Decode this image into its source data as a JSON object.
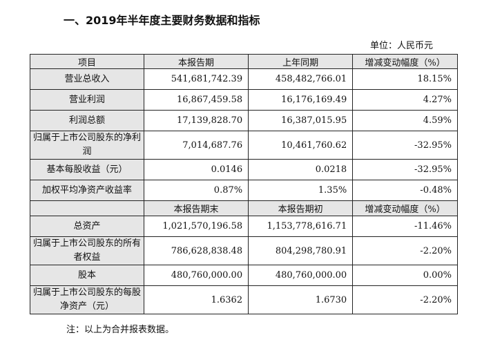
{
  "title": "一、2019年半年度主要财务数据和指标",
  "unit": "单位：人民币元",
  "header": [
    "项目",
    "本报告期",
    "上年同期",
    "增减变动幅度（%）"
  ],
  "rows1": [
    [
      "营业总收入",
      "541,681,742.39",
      "458,482,766.01",
      "18.15%"
    ],
    [
      "营业利润",
      "16,867,459.58",
      "16,176,169.49",
      "4.27%"
    ],
    [
      "利润总额",
      "17,139,828.70",
      "16,387,015.95",
      "4.59%"
    ],
    [
      "归属于上市公司股东的净利润",
      "7,014,687.76",
      "10,461,760.62",
      "-32.95%"
    ],
    [
      "基本每股收益（元）",
      "0.0146",
      "0.0218",
      "-32.95%"
    ],
    [
      "加权平均净资产收益率",
      "0.87%",
      "1.35%",
      "-0.48%"
    ]
  ],
  "subheader": [
    "",
    "本报告期末",
    "本报告期初",
    "增减变动幅度（%）"
  ],
  "rows2": [
    [
      "总资产",
      "1,021,570,196.58",
      "1,153,778,616.71",
      "-11.46%"
    ],
    [
      "归属于上市公司股东的所有者权益",
      "786,628,838.48",
      "804,298,780.91",
      "-2.20%"
    ],
    [
      "股本",
      "480,760,000.00",
      "480,760,000.00",
      "0.00%"
    ],
    [
      "归属于上市公司股东的每股净资产（元）",
      "1.6362",
      "1.6730",
      "-2.20%"
    ]
  ],
  "note": "注：以上为合并报表数据。"
}
